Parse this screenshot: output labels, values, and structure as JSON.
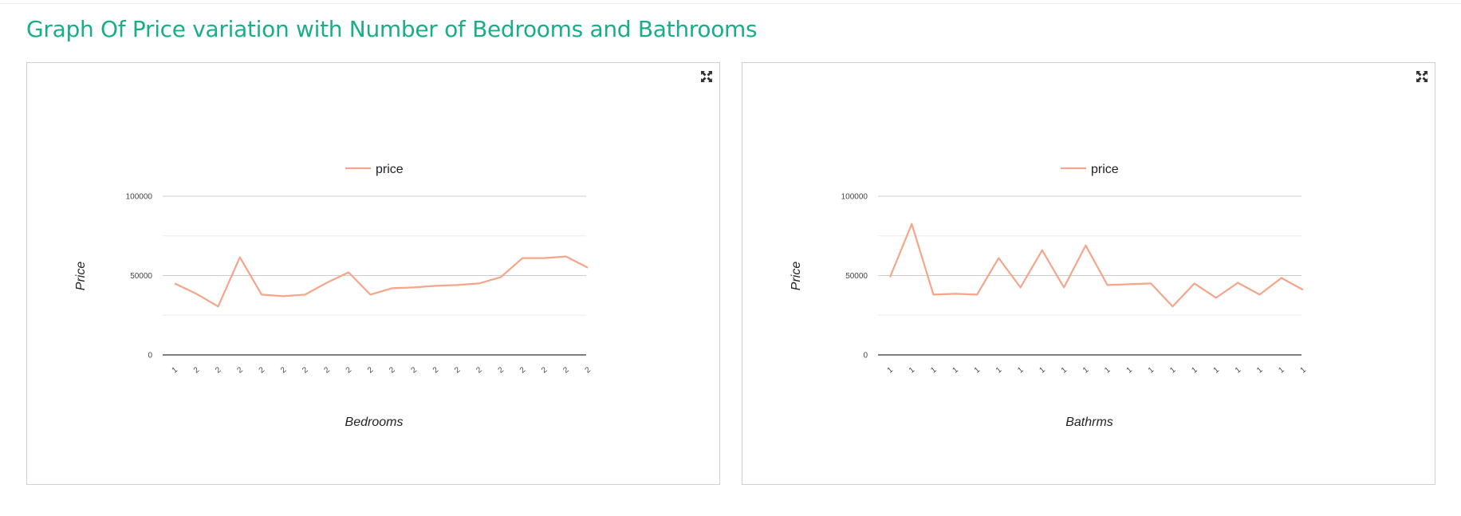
{
  "page": {
    "title": "Graph Of Price variation with Number of Bedrooms and Bathrooms"
  },
  "colors": {
    "title": "#1aad8a",
    "series": "#f4a58a",
    "gridline": "#cccccc",
    "minor_gridline": "#ebebeb",
    "baseline": "#333333"
  },
  "icons": {
    "expand": "expand-icon"
  },
  "chart_data": [
    {
      "type": "line",
      "xlabel": "Bedrooms",
      "ylabel": "Price",
      "legend": {
        "position": "top",
        "entries": [
          "price"
        ]
      },
      "ylim": [
        0,
        100000
      ],
      "y_ticks": [
        0,
        50000,
        100000
      ],
      "y_tick_labels": [
        "0",
        "50000",
        "100000"
      ],
      "grid": true,
      "categories": [
        "1",
        "2",
        "2",
        "2",
        "2",
        "2",
        "2",
        "2",
        "2",
        "2",
        "2",
        "2",
        "2",
        "2",
        "2",
        "2",
        "2",
        "2",
        "2",
        "2"
      ],
      "series": [
        {
          "name": "price",
          "values": [
            45000,
            38500,
            30500,
            61500,
            38000,
            37000,
            38000,
            45500,
            52000,
            38000,
            42000,
            42500,
            43500,
            44000,
            45000,
            49000,
            61000,
            61000,
            62000,
            55000
          ]
        }
      ]
    },
    {
      "type": "line",
      "xlabel": "Bathrms",
      "ylabel": "Price",
      "legend": {
        "position": "top",
        "entries": [
          "price"
        ]
      },
      "ylim": [
        0,
        100000
      ],
      "y_ticks": [
        0,
        50000,
        100000
      ],
      "y_tick_labels": [
        "0",
        "50000",
        "100000"
      ],
      "grid": true,
      "categories": [
        "1",
        "1",
        "1",
        "1",
        "1",
        "1",
        "1",
        "1",
        "1",
        "1",
        "1",
        "1",
        "1",
        "1",
        "1",
        "1",
        "1",
        "1",
        "1",
        "1"
      ],
      "series": [
        {
          "name": "price",
          "values": [
            49000,
            82500,
            38000,
            38500,
            38000,
            61000,
            42500,
            66000,
            42500,
            69000,
            44000,
            44500,
            45000,
            30500,
            45000,
            36000,
            45500,
            38000,
            48500,
            41000
          ]
        }
      ]
    }
  ]
}
